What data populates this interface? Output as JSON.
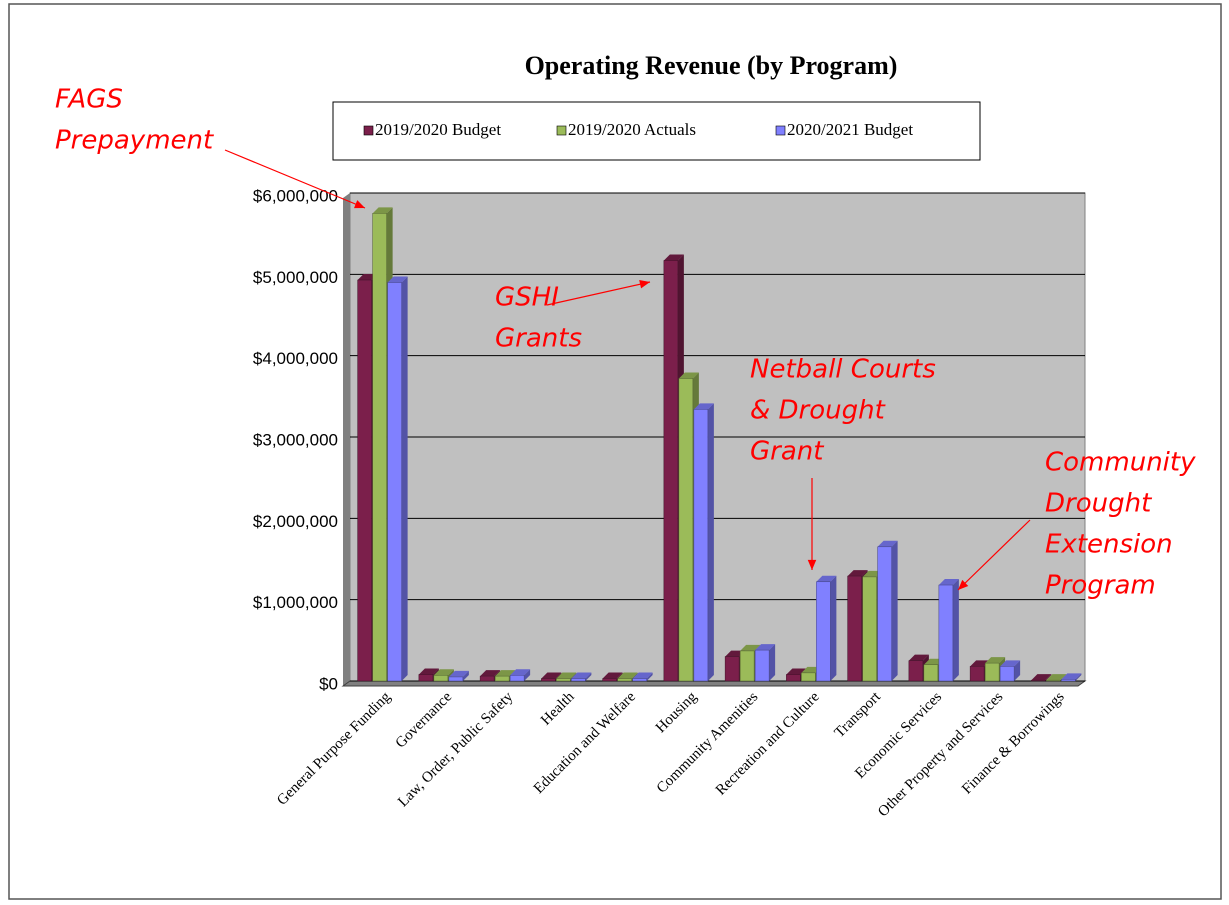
{
  "chart_data": {
    "type": "bar3d",
    "title": "Operating Revenue (by Program)",
    "categories": [
      "General Purpose Funding",
      "Governance",
      "Law, Order, Public Safety",
      "Health",
      "Education and Welfare",
      "Housing",
      "Community Amenities",
      "Recreation and Culture",
      "Transport",
      "Economic Services",
      "Other Property and Services",
      "Finance & Borrowings"
    ],
    "series": [
      {
        "name": "2019/2020 Budget",
        "color": "#7b1f4b",
        "values": [
          4930000,
          80000,
          60000,
          30000,
          30000,
          5170000,
          300000,
          80000,
          1290000,
          250000,
          180000,
          10000
        ]
      },
      {
        "name": "2019/2020 Actuals",
        "color": "#9bbb59",
        "values": [
          5750000,
          70000,
          60000,
          30000,
          30000,
          3720000,
          370000,
          100000,
          1280000,
          200000,
          220000,
          10000
        ]
      },
      {
        "name": "2020/2021 Budget",
        "color": "#8080ff",
        "values": [
          4900000,
          50000,
          70000,
          30000,
          30000,
          3340000,
          380000,
          1220000,
          1650000,
          1180000,
          180000,
          20000
        ]
      }
    ],
    "ylim": [
      0,
      6000000
    ],
    "yticks": [
      {
        "value": 0,
        "label": "$0"
      },
      {
        "value": 1000000,
        "label": "$1,000,000"
      },
      {
        "value": 2000000,
        "label": "$2,000,000"
      },
      {
        "value": 3000000,
        "label": "$3,000,000"
      },
      {
        "value": 4000000,
        "label": "$4,000,000"
      },
      {
        "value": 5000000,
        "label": "$5,000,000"
      },
      {
        "value": 6000000,
        "label": "$6,000,000"
      }
    ],
    "grid": true,
    "legend": "top",
    "annotations": [
      {
        "lines": [
          "FAGS",
          "Prepayment"
        ]
      },
      {
        "lines": [
          "GSHI",
          "Grants"
        ]
      },
      {
        "lines": [
          "Netball Courts",
          "& Drought",
          "Grant"
        ]
      },
      {
        "lines": [
          "Community",
          "Drought",
          "Extension",
          "Program"
        ]
      }
    ]
  }
}
